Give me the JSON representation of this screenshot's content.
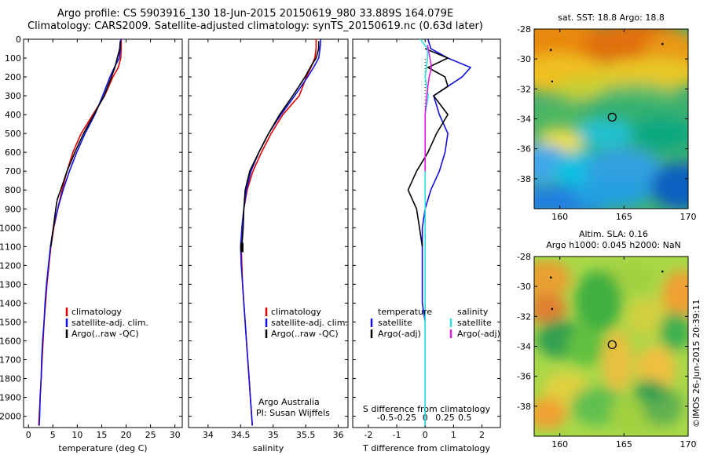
{
  "title": {
    "line1": "Argo profile: CS 5903916_130 18-Jun-2015 20150619_980 33.889S 164.079E",
    "line2": "Climatology: CARS2009. Satellite-adjusted climatology: synTS_20150619.nc (0.63d later)"
  },
  "stamp": "©IMOS 26-Jun-2015 20:39:11",
  "colors": {
    "climatology": "#e00000",
    "satellite": "#1010e0",
    "argo": "#000000",
    "cyan": "#30e0e0",
    "magenta": "#e020e0"
  },
  "chart_data": [
    {
      "type": "line",
      "id": "temperature",
      "xlabel": "temperature (deg C)",
      "ylabel": "",
      "xlim": [
        -1,
        31.5
      ],
      "ylim": [
        2060,
        0
      ],
      "x_ticks": [
        0,
        5,
        10,
        15,
        20,
        25,
        30
      ],
      "y_ticks": [
        0,
        100,
        200,
        300,
        400,
        500,
        600,
        700,
        800,
        900,
        1000,
        1100,
        1200,
        1300,
        1400,
        1500,
        1600,
        1700,
        1800,
        1900,
        2000
      ],
      "legend": [
        "climatology",
        "satellite-adj. clim.",
        "Argo(..raw -QC)"
      ],
      "series": [
        {
          "name": "climatology",
          "color": "#e00000",
          "points": [
            [
              19.0,
              0
            ],
            [
              19.0,
              50
            ],
            [
              18.9,
              100
            ],
            [
              18.4,
              150
            ],
            [
              17.3,
              200
            ],
            [
              15.6,
              300
            ],
            [
              13.2,
              400
            ],
            [
              10.8,
              500
            ],
            [
              9.1,
              600
            ],
            [
              7.9,
              700
            ],
            [
              6.9,
              800
            ],
            [
              6.0,
              900
            ],
            [
              5.2,
              1000
            ],
            [
              4.6,
              1100
            ],
            [
              4.2,
              1200
            ],
            [
              3.8,
              1300
            ],
            [
              3.5,
              1400
            ],
            [
              3.2,
              1500
            ],
            [
              3.0,
              1600
            ],
            [
              2.8,
              1700
            ],
            [
              2.6,
              1800
            ],
            [
              2.4,
              1900
            ],
            [
              2.2,
              2000
            ],
            [
              2.1,
              2050
            ]
          ]
        },
        {
          "name": "satellite-adj. clim.",
          "color": "#1010e0",
          "points": [
            [
              18.9,
              0
            ],
            [
              18.8,
              50
            ],
            [
              18.6,
              100
            ],
            [
              17.6,
              150
            ],
            [
              16.7,
              200
            ],
            [
              15.2,
              300
            ],
            [
              13.6,
              400
            ],
            [
              11.6,
              500
            ],
            [
              9.9,
              600
            ],
            [
              8.4,
              700
            ],
            [
              7.1,
              800
            ],
            [
              6.0,
              900
            ],
            [
              5.1,
              1000
            ],
            [
              4.5,
              1100
            ],
            [
              4.1,
              1200
            ],
            [
              3.7,
              1300
            ],
            [
              3.4,
              1400
            ],
            [
              3.2,
              1500
            ],
            [
              2.9,
              1600
            ],
            [
              2.7,
              1700
            ],
            [
              2.6,
              1800
            ],
            [
              2.4,
              1900
            ],
            [
              2.3,
              2000
            ],
            [
              2.2,
              2050
            ]
          ]
        },
        {
          "name": "Argo(..raw -QC)",
          "color": "#000000",
          "points": [
            [
              18.8,
              10
            ],
            [
              18.7,
              50
            ],
            [
              18.2,
              100
            ],
            [
              17.7,
              150
            ],
            [
              17.0,
              200
            ],
            [
              15.5,
              300
            ],
            [
              13.4,
              400
            ],
            [
              11.3,
              500
            ],
            [
              9.5,
              600
            ],
            [
              7.9,
              700
            ],
            [
              6.6,
              800
            ],
            [
              5.9,
              850
            ],
            [
              5.6,
              900
            ],
            [
              5.1,
              1000
            ],
            [
              4.6,
              1100
            ]
          ]
        }
      ]
    },
    {
      "type": "line",
      "id": "salinity",
      "xlabel": "salinity",
      "ylabel": "",
      "xlim": [
        33.7,
        36.15
      ],
      "ylim": [
        2060,
        0
      ],
      "x_ticks": [
        34,
        34.5,
        35,
        35.5,
        36
      ],
      "legend": [
        "climatology",
        "satellite-adj. clim.",
        "Argo(..raw -QC)"
      ],
      "annotation": [
        "Argo Australia",
        "PI: Susan Wijffels"
      ],
      "series": [
        {
          "name": "climatology",
          "color": "#e00000",
          "points": [
            [
              35.66,
              0
            ],
            [
              35.66,
              50
            ],
            [
              35.64,
              100
            ],
            [
              35.58,
              150
            ],
            [
              35.51,
              200
            ],
            [
              35.4,
              300
            ],
            [
              35.15,
              400
            ],
            [
              34.97,
              500
            ],
            [
              34.82,
              600
            ],
            [
              34.69,
              700
            ],
            [
              34.6,
              800
            ],
            [
              34.55,
              900
            ],
            [
              34.52,
              1000
            ],
            [
              34.51,
              1100
            ],
            [
              34.52,
              1200
            ],
            [
              34.53,
              1300
            ],
            [
              34.55,
              1400
            ],
            [
              34.57,
              1500
            ],
            [
              34.59,
              1600
            ],
            [
              34.61,
              1700
            ],
            [
              34.63,
              1800
            ],
            [
              34.65,
              1900
            ],
            [
              34.67,
              2000
            ],
            [
              34.68,
              2050
            ]
          ]
        },
        {
          "name": "satellite-adj. clim.",
          "color": "#1010e0",
          "points": [
            [
              35.73,
              0
            ],
            [
              35.72,
              50
            ],
            [
              35.7,
              100
            ],
            [
              35.62,
              150
            ],
            [
              35.53,
              200
            ],
            [
              35.33,
              300
            ],
            [
              35.12,
              400
            ],
            [
              34.93,
              500
            ],
            [
              34.78,
              600
            ],
            [
              34.66,
              700
            ],
            [
              34.59,
              800
            ],
            [
              34.55,
              900
            ],
            [
              34.52,
              1000
            ],
            [
              34.5,
              1100
            ],
            [
              34.51,
              1200
            ],
            [
              34.53,
              1300
            ],
            [
              34.55,
              1400
            ],
            [
              34.57,
              1500
            ],
            [
              34.59,
              1600
            ],
            [
              34.61,
              1700
            ],
            [
              34.63,
              1800
            ],
            [
              34.65,
              1900
            ],
            [
              34.67,
              2000
            ],
            [
              34.68,
              2050
            ]
          ]
        },
        {
          "name": "Argo(..raw -QC)",
          "color": "#000000",
          "points": [
            [
              35.7,
              10
            ],
            [
              35.7,
              50
            ],
            [
              35.66,
              100
            ],
            [
              35.57,
              150
            ],
            [
              35.49,
              200
            ],
            [
              35.3,
              300
            ],
            [
              35.1,
              400
            ],
            [
              34.93,
              500
            ],
            [
              34.78,
              600
            ],
            [
              34.64,
              700
            ],
            [
              34.57,
              800
            ],
            [
              34.55,
              900
            ],
            [
              34.54,
              1000
            ],
            [
              34.52,
              1100
            ]
          ]
        }
      ]
    },
    {
      "type": "line",
      "id": "differences",
      "xlabel": "T difference from climatology",
      "xlabel_top": "S difference from climatology",
      "xlim": [
        -2.55,
        2.65
      ],
      "ylim": [
        2060,
        0
      ],
      "x_ticks_T": [
        "-2",
        "-1",
        "0",
        "1",
        "2"
      ],
      "x_ticks_S": [
        "-0.5",
        "-0.25",
        "0",
        "0.25",
        "0.5"
      ],
      "legend_groups": [
        {
          "title": "temperature",
          "entries": [
            "satellite",
            "Argo(-adj)"
          ]
        },
        {
          "title": "salinity",
          "entries": [
            "satellite",
            "Argo(-adj)"
          ]
        }
      ],
      "series": [
        {
          "name": "satellite",
          "group": "temperature",
          "color": "#1010e0",
          "points": [
            [
              0.1,
              0
            ],
            [
              0.2,
              50
            ],
            [
              0.8,
              100
            ],
            [
              1.6,
              150
            ],
            [
              1.3,
              200
            ],
            [
              0.3,
              300
            ],
            [
              0.5,
              400
            ],
            [
              0.8,
              500
            ],
            [
              0.7,
              600
            ],
            [
              0.5,
              700
            ],
            [
              0.2,
              800
            ],
            [
              0.0,
              900
            ],
            [
              -0.1,
              1000
            ],
            [
              -0.1,
              1100
            ],
            [
              -0.1,
              1200
            ],
            [
              -0.1,
              1300
            ],
            [
              -0.1,
              1400
            ],
            [
              0.0,
              1500
            ],
            [
              0.0,
              1600
            ],
            [
              0.0,
              1700
            ],
            [
              0.0,
              1800
            ],
            [
              0.0,
              1900
            ],
            [
              0.0,
              2000
            ],
            [
              0.0,
              2050
            ]
          ]
        },
        {
          "name": "Argo(-adj)",
          "group": "temperature",
          "color": "#000000",
          "points": [
            [
              0.0,
              50
            ],
            [
              0.8,
              100
            ],
            [
              0.1,
              150
            ],
            [
              0.7,
              200
            ],
            [
              0.8,
              250
            ],
            [
              0.3,
              300
            ],
            [
              0.8,
              400
            ],
            [
              0.4,
              500
            ],
            [
              0.1,
              600
            ],
            [
              -0.3,
              700
            ],
            [
              -0.6,
              800
            ],
            [
              -0.3,
              900
            ],
            [
              -0.2,
              1000
            ],
            [
              -0.1,
              1100
            ]
          ]
        },
        {
          "name": "satellite",
          "group": "salinity",
          "color": "#30e0e0",
          "points": [
            [
              -0.06,
              0
            ],
            [
              0.03,
              50
            ],
            [
              0.03,
              100
            ],
            [
              0.0,
              200
            ],
            [
              0.04,
              300
            ],
            [
              0.0,
              400
            ],
            [
              0.0,
              500
            ],
            [
              0.0,
              700
            ],
            [
              0.0,
              800
            ],
            [
              0.0,
              1000
            ],
            [
              0.0,
              1200
            ],
            [
              0.0,
              1400
            ],
            [
              0.0,
              1600
            ],
            [
              0.0,
              1800
            ],
            [
              0.0,
              2000
            ],
            [
              0.0,
              2050
            ]
          ]
        },
        {
          "name": "Argo(-adj)",
          "group": "salinity",
          "color": "#e020e0",
          "points": [
            [
              0.03,
              30
            ],
            [
              0.06,
              100
            ],
            [
              0.08,
              150
            ],
            [
              0.05,
              200
            ],
            [
              0.02,
              300
            ],
            [
              0.0,
              400
            ],
            [
              0.0,
              500
            ],
            [
              0.0,
              700
            ]
          ]
        }
      ]
    },
    {
      "type": "heatmap",
      "id": "sst-map",
      "title": "sat. SST: 18.8 Argo: 18.8",
      "xlim": [
        158,
        170
      ],
      "ylim": [
        -40,
        -28
      ],
      "x_ticks": [
        "160",
        "165",
        "170"
      ],
      "y_ticks": [
        "-28",
        "-30",
        "-32",
        "-34",
        "-36",
        "-38"
      ],
      "marker": {
        "lon": 164.079,
        "lat": -33.889
      }
    },
    {
      "type": "heatmap",
      "id": "sla-map",
      "title_lines": [
        "Altim. SLA: 0.16",
        "Argo h1000: 0.045 h2000: NaN"
      ],
      "xlim": [
        158,
        170
      ],
      "ylim": [
        -40,
        -28
      ],
      "x_ticks": [
        "160",
        "165",
        "170"
      ],
      "y_ticks": [
        "-28",
        "-30",
        "-32",
        "-34",
        "-36",
        "-38"
      ],
      "marker": {
        "lon": 164.079,
        "lat": -33.889
      }
    }
  ]
}
